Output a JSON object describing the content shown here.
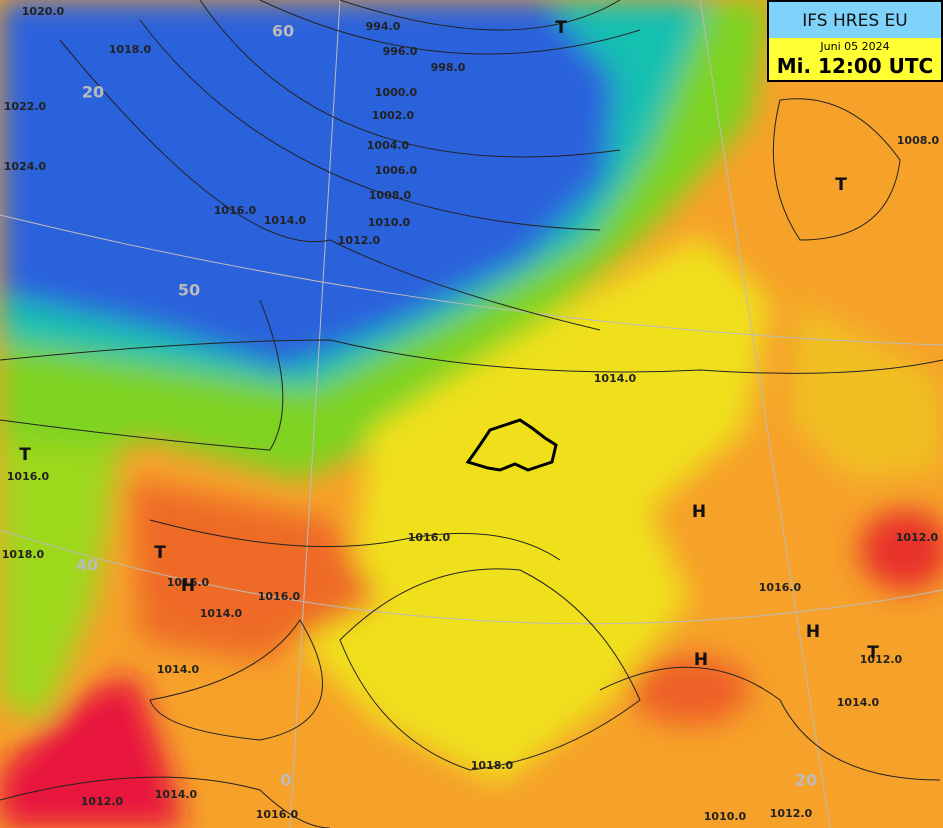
{
  "header": {
    "model": "IFS HRES EU",
    "date": "Juni 05 2024",
    "time": "Mi. 12:00 UTC"
  },
  "isobar_labels": [
    "1020.0",
    "1018.0",
    "1022.0",
    "1024.0",
    "994.0",
    "996.0",
    "998.0",
    "1000.0",
    "1002.0",
    "1004.0",
    "1006.0",
    "1008.0",
    "1010.0",
    "1012.0",
    "1016.0",
    "1014.0",
    "1008.0",
    "1014.0",
    "1016.0",
    "1018.0",
    "1016.0",
    "1016.0",
    "1014.0",
    "1016.0",
    "1014.0",
    "1016.0",
    "1012.0",
    "1012.0",
    "1014.0",
    "1018.0",
    "1012.0",
    "1014.0",
    "1016.0",
    "1010.0",
    "1012.0"
  ],
  "pressure_systems": [
    "T",
    "T",
    "T",
    "T",
    "H",
    "H",
    "H",
    "H",
    "T"
  ],
  "graticule_labels": [
    "60",
    "20",
    "50",
    "40",
    "0",
    "20"
  ]
}
